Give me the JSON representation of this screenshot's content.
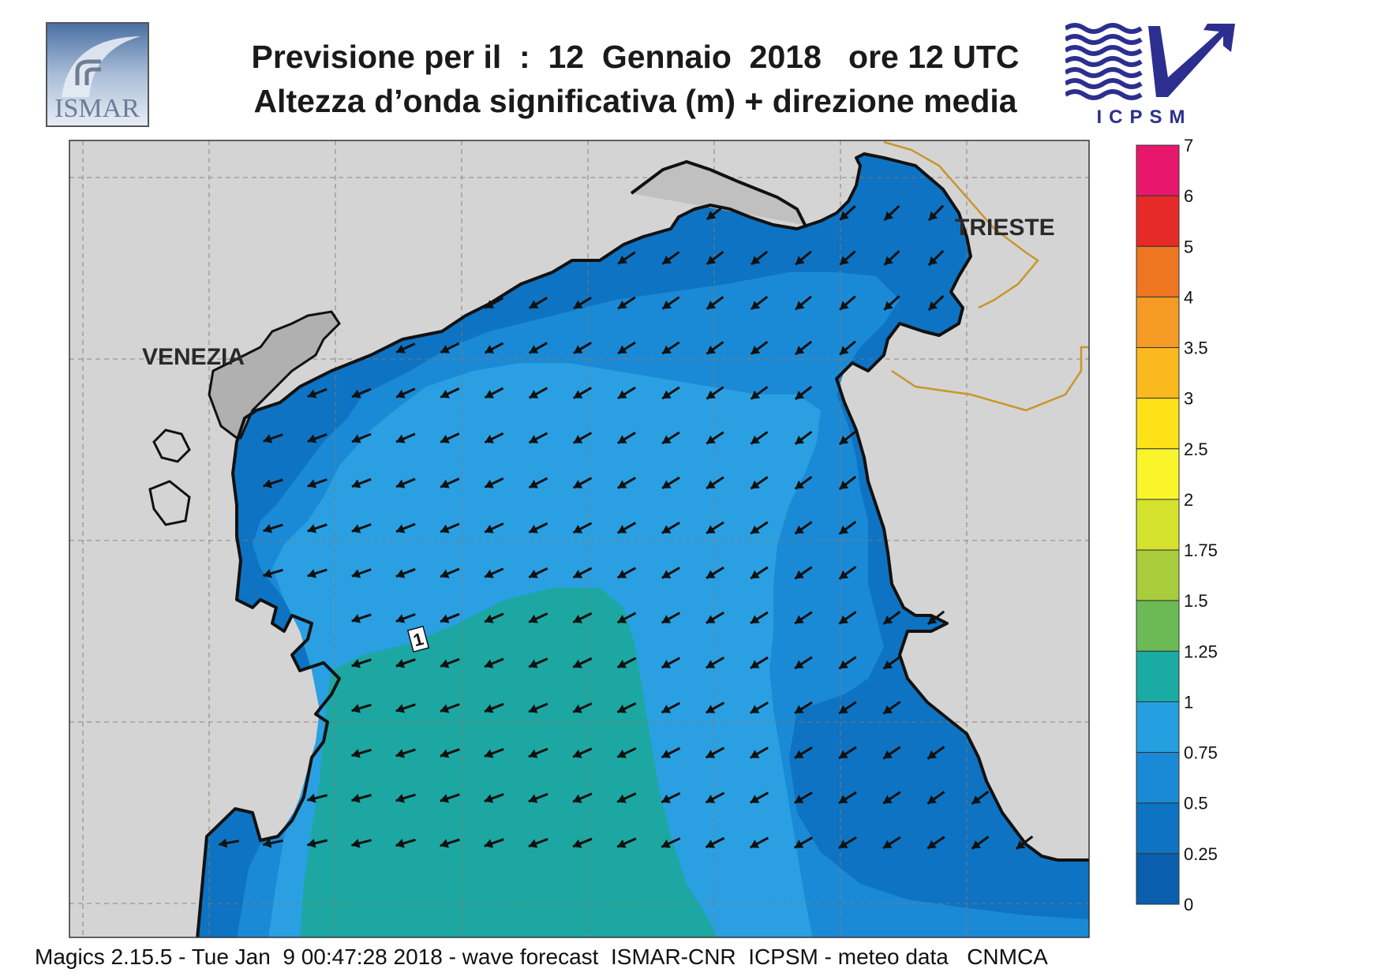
{
  "header": {
    "title_line1": "Previsione per il  :  12  Gennaio  2018   ore 12 UTC",
    "title_line2": "Altezza d’onda significativa (m) + direzione media"
  },
  "logos": {
    "left_text": "ISMAR",
    "right_text": "ICPSM"
  },
  "map": {
    "cities": [
      {
        "name": "VENEZIA"
      },
      {
        "name": "TRIESTE"
      }
    ],
    "contour_label": "1",
    "sea_colors": {
      "band_025_05": "#0e73c2",
      "band_05_075": "#1b8ad6",
      "band_075_1": "#2aa0e3",
      "band_1_125": "#1ca7a2"
    },
    "land_color": "#d4d4d4",
    "border_color": "#c8962a",
    "mean_wave_direction": "toward south-west"
  },
  "colorbar": {
    "labels": [
      "7",
      "6",
      "5",
      "4",
      "3.5",
      "3",
      "2.5",
      "2",
      "1.75",
      "1.5",
      "1.25",
      "1",
      "0.75",
      "0.5",
      "0.25",
      "0"
    ],
    "colors": [
      "#e8176e",
      "#e62a28",
      "#ef7621",
      "#f49a25",
      "#f9b91f",
      "#fde21a",
      "#f9f52a",
      "#d4e22e",
      "#a8cc3c",
      "#6cba55",
      "#1aaba5",
      "#269fe0",
      "#1b8ad6",
      "#0e73c2",
      "#0a5ead"
    ]
  },
  "footer": {
    "text": "Magics 2.15.5 - Tue Jan  9 00:47:28 2018 - wave forecast  ISMAR-CNR  ICPSM - meteo data   CNMCA"
  }
}
